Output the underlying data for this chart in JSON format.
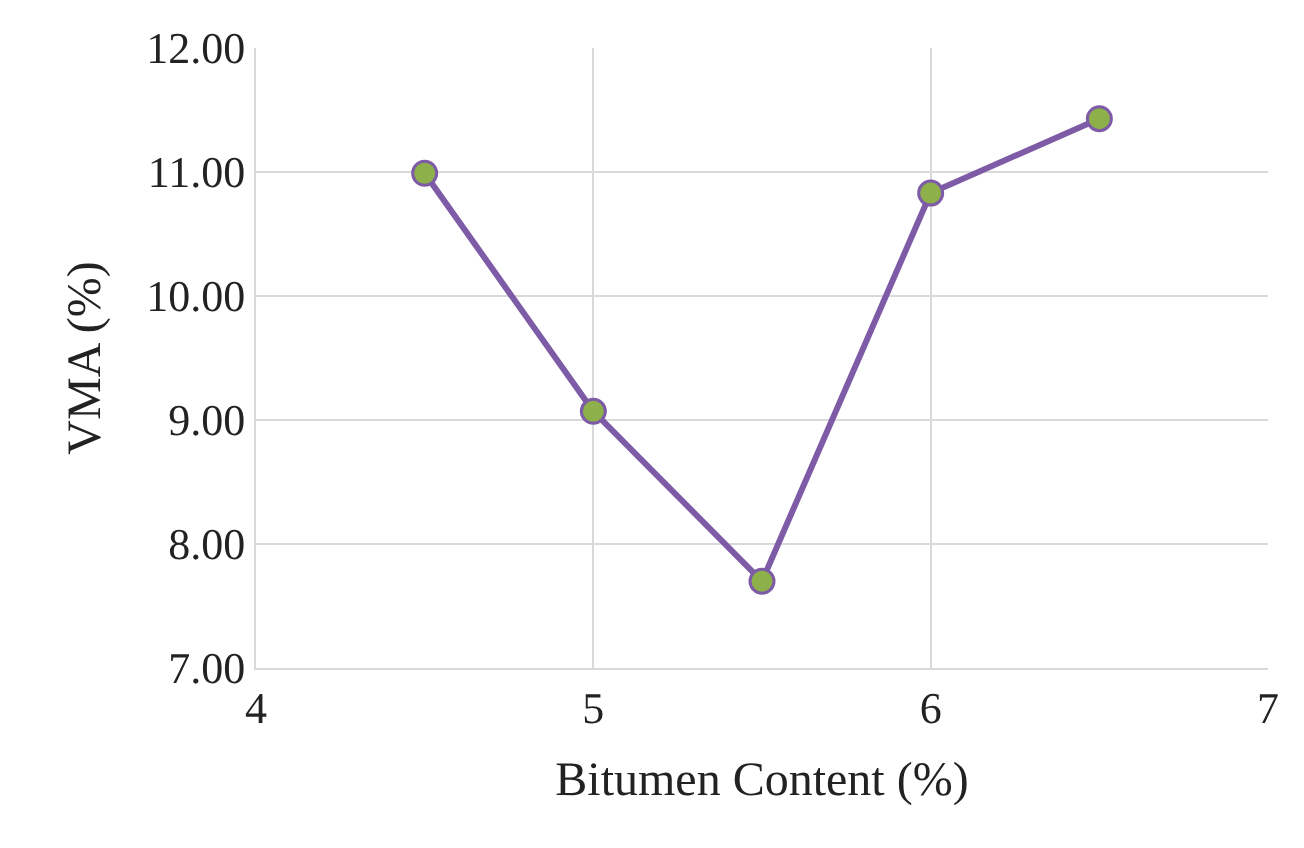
{
  "chart_data": {
    "type": "line",
    "xlabel": "Bitumen Content (%)",
    "ylabel": "VMA (%)",
    "x": [
      4.5,
      5,
      5.5,
      6,
      6.5
    ],
    "series": [
      {
        "color": "#7d5ba6",
        "colors": [
          "#8db04a",
          "#8db04a",
          "#8db04a",
          "#8db04a",
          "#8db04a"
        ],
        "values": [
          10.99,
          9.07,
          7.7,
          10.83,
          11.43
        ]
      }
    ],
    "xlim": [
      4,
      7
    ],
    "xticks": [
      4,
      5,
      6,
      7
    ],
    "ylim": [
      7,
      12
    ],
    "yticks": [
      {
        "value": 7,
        "label": "7.00"
      },
      {
        "value": 8,
        "label": "8.00"
      },
      {
        "value": 9,
        "label": "9.00"
      },
      {
        "value": 10,
        "label": "10.00"
      },
      {
        "value": 11,
        "label": "11.00"
      },
      {
        "value": 12,
        "label": "12.00"
      }
    ],
    "grid": true,
    "marker": "circle",
    "line_style": "solid",
    "legend": false
  }
}
